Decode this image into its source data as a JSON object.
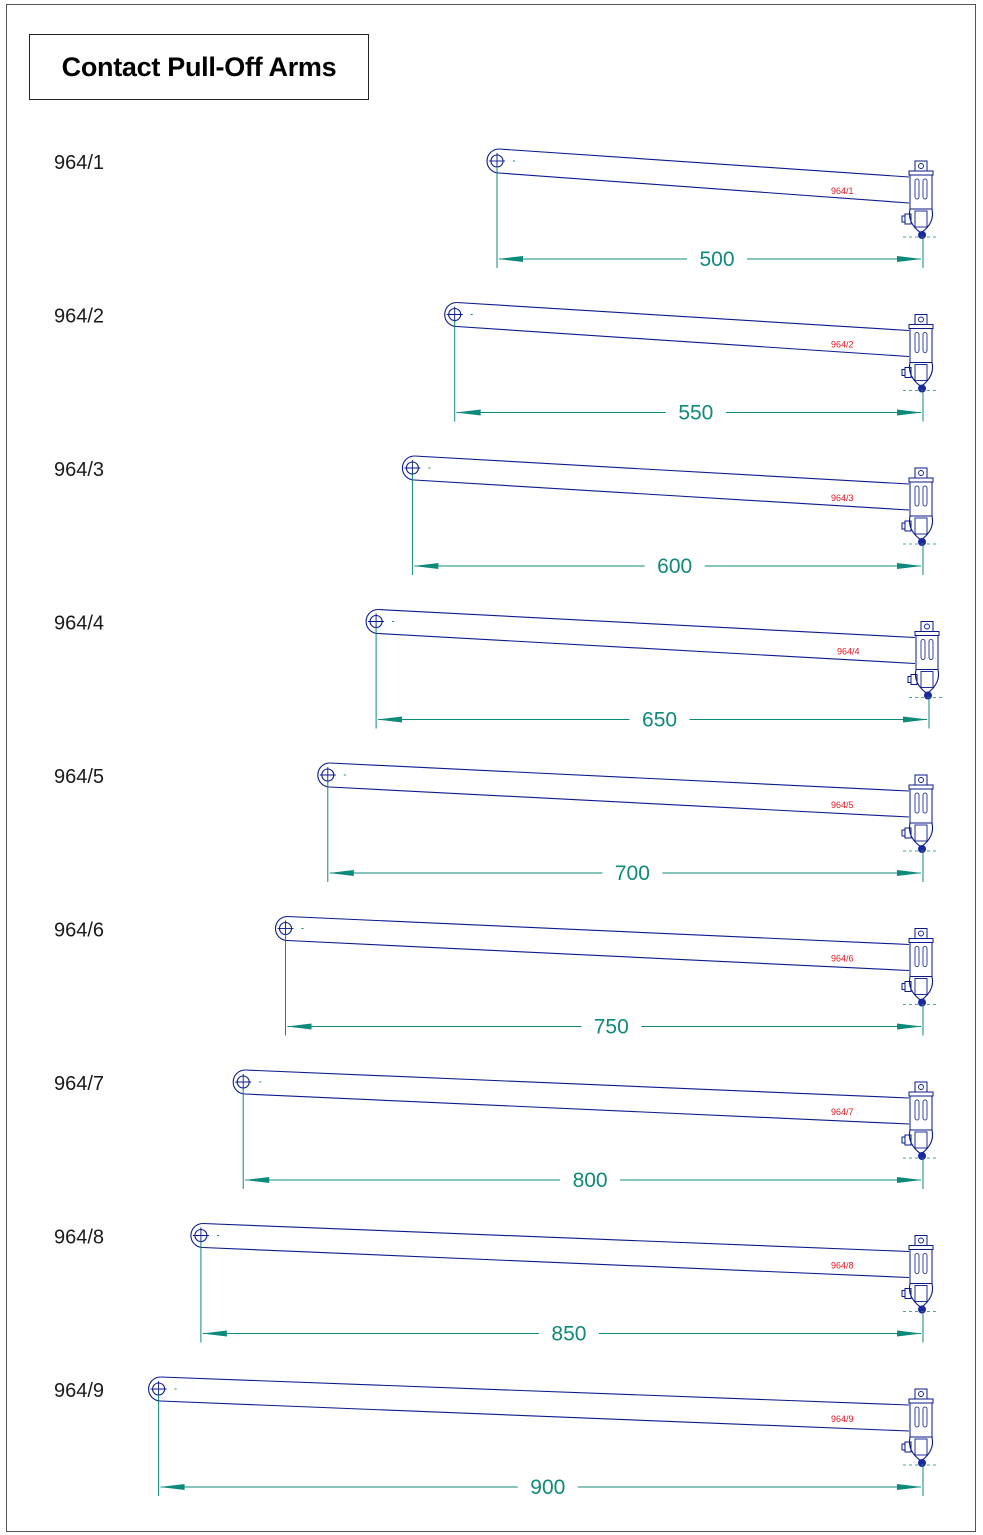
{
  "title": "Contact Pull-Off Arms",
  "colors": {
    "outline": "#0a1a8c",
    "dimension": "#0f8a7a",
    "part_label": "#e8141e",
    "hardware_fill": "#1a2a9c",
    "text": "#1a1a1a"
  },
  "icons": {
    "pivot": "pivot-hole-icon",
    "clamp": "contact-clamp-icon"
  },
  "arms": [
    {
      "code": "964/1",
      "length": "500"
    },
    {
      "code": "964/2",
      "length": "550"
    },
    {
      "code": "964/3",
      "length": "600"
    },
    {
      "code": "964/4",
      "length": "650"
    },
    {
      "code": "964/5",
      "length": "700"
    },
    {
      "code": "964/6",
      "length": "750"
    },
    {
      "code": "964/7",
      "length": "800"
    },
    {
      "code": "964/8",
      "length": "850"
    },
    {
      "code": "964/9",
      "length": "900"
    }
  ]
}
